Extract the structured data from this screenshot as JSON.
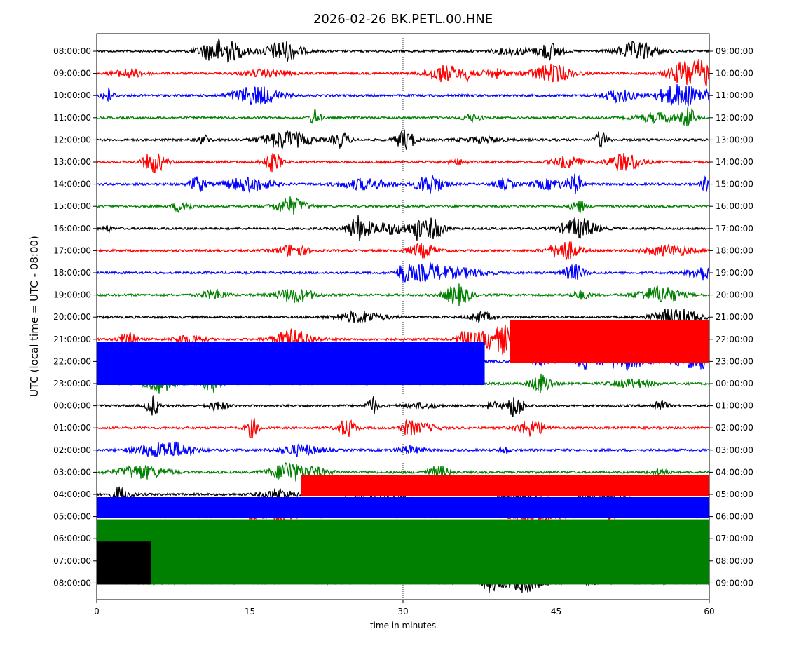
{
  "chart_data": {
    "type": "helicorder",
    "title": "2026-02-26 BK.PETL.00.HNE",
    "xlabel": "time in minutes",
    "ylabel": "UTC (local time = UTC - 08:00)",
    "xlim": [
      0,
      60
    ],
    "x_ticks": [
      0,
      15,
      30,
      45,
      60
    ],
    "grid": "vertical dotted lines at 15, 30, 45",
    "trace_colors": [
      "#000000",
      "#ff0000",
      "#0000ff",
      "#008000"
    ],
    "left_tick_labels": [
      "08:00:00",
      "09:00:00",
      "10:00:00",
      "11:00:00",
      "12:00:00",
      "13:00:00",
      "14:00:00",
      "15:00:00",
      "16:00:00",
      "17:00:00",
      "18:00:00",
      "19:00:00",
      "20:00:00",
      "21:00:00",
      "22:00:00",
      "23:00:00",
      "00:00:00",
      "01:00:00",
      "02:00:00",
      "03:00:00",
      "04:00:00",
      "05:00:00",
      "06:00:00",
      "07:00:00",
      "08:00:00"
    ],
    "right_tick_labels": [
      "09:00:00",
      "10:00:00",
      "11:00:00",
      "12:00:00",
      "13:00:00",
      "14:00:00",
      "15:00:00",
      "16:00:00",
      "17:00:00",
      "18:00:00",
      "19:00:00",
      "20:00:00",
      "21:00:00",
      "22:00:00",
      "23:00:00",
      "00:00:00",
      "01:00:00",
      "02:00:00",
      "03:00:00",
      "04:00:00",
      "05:00:00",
      "06:00:00",
      "07:00:00",
      "08:00:00",
      "09:00:00"
    ],
    "saturated_blocks": [
      {
        "color": "#0000ff",
        "from_row": 13,
        "to_row": 15,
        "x_start": 0,
        "x_end": 38
      },
      {
        "color": "#ff0000",
        "from_row": 12,
        "to_row": 14,
        "x_start": 40.5,
        "x_end": 60
      },
      {
        "color": "#ff0000",
        "from_row": 19,
        "to_row": 20,
        "x_start": 20,
        "x_end": 60
      },
      {
        "color": "#0000ff",
        "from_row": 20,
        "to_row": 21,
        "x_start": 0,
        "x_end": 60
      },
      {
        "color": "#008000",
        "from_row": 21,
        "to_row": 24,
        "x_start": 0,
        "x_end": 60
      },
      {
        "color": "#000000",
        "from_row": 22,
        "to_row": 24,
        "x_start": 0,
        "x_end": 5.3
      }
    ]
  }
}
